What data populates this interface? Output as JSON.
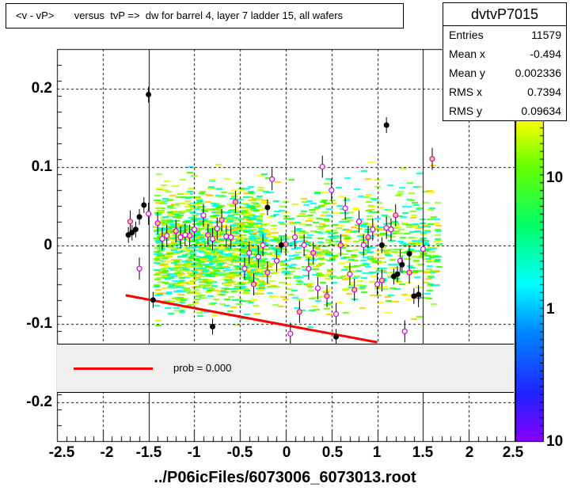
{
  "title": "<v - vP>       versus  tvP =>  dw for barrel 4, layer 7 ladder 15, all wafers",
  "stats": {
    "name": "dvtvP7015",
    "rows": [
      {
        "label": "Entries",
        "value": "11579"
      },
      {
        "label": "Mean x",
        "value": "-0.494"
      },
      {
        "label": "Mean y",
        "value": "0.002336"
      },
      {
        "label": "RMS x",
        "value": "0.7394"
      },
      {
        "label": "RMS y",
        "value": "0.09634"
      }
    ]
  },
  "legend": {
    "text": "prob = 0.000",
    "color": "#ff0000"
  },
  "chart_data": {
    "type": "scatter",
    "xlabel": "../P06icFiles/6073006_6073013.root",
    "ylabel": "",
    "xlim": [
      -2.5,
      2.5
    ],
    "ylim": [
      -0.25,
      0.25
    ],
    "x_ticks": [
      "-2.5",
      "-2",
      "-1.5",
      "-1",
      "-0.5",
      "0",
      "0.5",
      "1",
      "1.5",
      "2",
      "2.5"
    ],
    "y_ticks": [
      "0.2",
      "0.1",
      "0",
      "-0.1",
      "-0.2"
    ],
    "z_ticks": [
      "10",
      "1",
      "10"
    ],
    "grid": true,
    "fit_line": {
      "x": [
        -1.75,
        1.0
      ],
      "y": [
        -0.064,
        -0.124
      ],
      "color": "#ff0000"
    },
    "black_points": [
      {
        "x": -1.72,
        "y": 0.013
      },
      {
        "x": -1.68,
        "y": 0.016
      },
      {
        "x": -1.64,
        "y": 0.02
      },
      {
        "x": -1.6,
        "y": 0.036
      },
      {
        "x": -1.55,
        "y": 0.051
      },
      {
        "x": -1.5,
        "y": 0.192
      },
      {
        "x": -1.45,
        "y": -0.07
      },
      {
        "x": -0.8,
        "y": -0.104
      },
      {
        "x": -0.2,
        "y": 0.048
      },
      {
        "x": -0.05,
        "y": 0.0
      },
      {
        "x": 0.55,
        "y": -0.117
      },
      {
        "x": 1.05,
        "y": 0.0
      },
      {
        "x": 1.1,
        "y": 0.153
      },
      {
        "x": 1.18,
        "y": -0.04
      },
      {
        "x": 1.22,
        "y": -0.037
      },
      {
        "x": 1.27,
        "y": -0.025
      },
      {
        "x": 1.35,
        "y": -0.011
      },
      {
        "x": 1.4,
        "y": -0.065
      },
      {
        "x": 1.45,
        "y": -0.063
      }
    ],
    "profile_points": [
      {
        "x": -1.7,
        "y": 0.03
      },
      {
        "x": -1.6,
        "y": -0.03
      },
      {
        "x": -1.5,
        "y": 0.04
      },
      {
        "x": -1.4,
        "y": 0.028
      },
      {
        "x": -1.35,
        "y": 0.008
      },
      {
        "x": -1.3,
        "y": 0.012
      },
      {
        "x": -1.2,
        "y": 0.018
      },
      {
        "x": -1.15,
        "y": 0.01
      },
      {
        "x": -1.1,
        "y": 0.013
      },
      {
        "x": -1.05,
        "y": 0.012
      },
      {
        "x": -1.0,
        "y": 0.02
      },
      {
        "x": -0.9,
        "y": 0.038
      },
      {
        "x": -0.85,
        "y": 0.013
      },
      {
        "x": -0.8,
        "y": 0.008
      },
      {
        "x": -0.75,
        "y": 0.021
      },
      {
        "x": -0.7,
        "y": 0.032
      },
      {
        "x": -0.65,
        "y": 0.011
      },
      {
        "x": -0.6,
        "y": 0.01
      },
      {
        "x": -0.55,
        "y": 0.055
      },
      {
        "x": -0.45,
        "y": -0.03
      },
      {
        "x": -0.4,
        "y": -0.01
      },
      {
        "x": -0.35,
        "y": -0.05
      },
      {
        "x": -0.3,
        "y": -0.015
      },
      {
        "x": -0.25,
        "y": 0.0
      },
      {
        "x": -0.2,
        "y": -0.035
      },
      {
        "x": -0.15,
        "y": 0.084
      },
      {
        "x": -0.1,
        "y": -0.02
      },
      {
        "x": 0.0,
        "y": 0.001
      },
      {
        "x": 0.05,
        "y": -0.113
      },
      {
        "x": 0.1,
        "y": 0.01
      },
      {
        "x": 0.15,
        "y": -0.085
      },
      {
        "x": 0.2,
        "y": 0.0
      },
      {
        "x": 0.25,
        "y": -0.03
      },
      {
        "x": 0.3,
        "y": -0.01
      },
      {
        "x": 0.35,
        "y": -0.055
      },
      {
        "x": 0.4,
        "y": 0.1
      },
      {
        "x": 0.45,
        "y": -0.065
      },
      {
        "x": 0.5,
        "y": 0.07
      },
      {
        "x": 0.55,
        "y": -0.088
      },
      {
        "x": 0.6,
        "y": 0.0
      },
      {
        "x": 0.65,
        "y": 0.047
      },
      {
        "x": 0.7,
        "y": -0.037
      },
      {
        "x": 0.75,
        "y": -0.057
      },
      {
        "x": 0.8,
        "y": 0.03
      },
      {
        "x": 0.85,
        "y": 0.0
      },
      {
        "x": 0.9,
        "y": 0.01
      },
      {
        "x": 0.95,
        "y": 0.02
      },
      {
        "x": 1.0,
        "y": -0.05
      },
      {
        "x": 1.05,
        "y": -0.045
      },
      {
        "x": 1.1,
        "y": 0.022
      },
      {
        "x": 1.15,
        "y": 0.02
      },
      {
        "x": 1.2,
        "y": 0.038
      },
      {
        "x": 1.25,
        "y": -0.02
      },
      {
        "x": 1.3,
        "y": -0.11
      },
      {
        "x": 1.35,
        "y": -0.035
      },
      {
        "x": 1.45,
        "y": -0.065
      },
      {
        "x": 1.5,
        "y": -0.005
      },
      {
        "x": 1.6,
        "y": 0.11
      }
    ]
  }
}
